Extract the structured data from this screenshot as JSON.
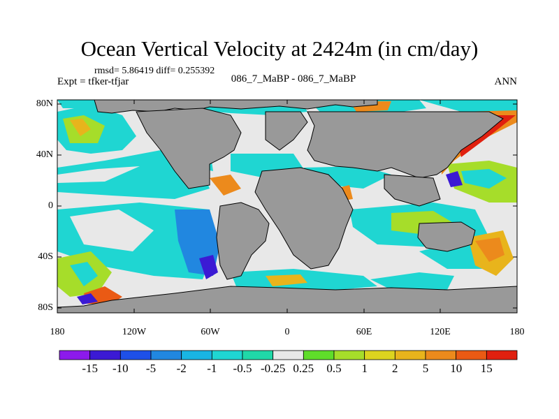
{
  "title": "Ocean Vertical Velocity at 2424m (in cm/day)",
  "stats_text": "rmsd= 5.86419 diff= 0.255392",
  "expt_text": "Expt = tfker-tfjar",
  "center_label": "086_7_MaBP - 086_7_MaBP",
  "season_label": "ANN",
  "lat_ticks": [
    "80N",
    "40N",
    "0",
    "40S",
    "80S"
  ],
  "lon_ticks": [
    "180",
    "120W",
    "60W",
    "0",
    "60E",
    "120E",
    "180"
  ],
  "colorbar": {
    "labels": [
      "-15",
      "-10",
      "-5",
      "-2",
      "-1",
      "-0.5",
      "-0.25",
      "0.25",
      "0.5",
      "1",
      "2",
      "5",
      "10",
      "15"
    ],
    "colors": [
      "#8c1aeb",
      "#3b1ad4",
      "#1e50e8",
      "#2187e0",
      "#19b5e3",
      "#1fd6d2",
      "#20d8a8",
      "#e8e8e8",
      "#5fdd2a",
      "#a6dd2a",
      "#dcd41f",
      "#e8b41c",
      "#ec8a1c",
      "#ea5a14",
      "#e0200f"
    ]
  },
  "colors": {
    "land": "#999999",
    "ocean_neutral": "#e8e8e8",
    "coast_line": "#000000"
  }
}
